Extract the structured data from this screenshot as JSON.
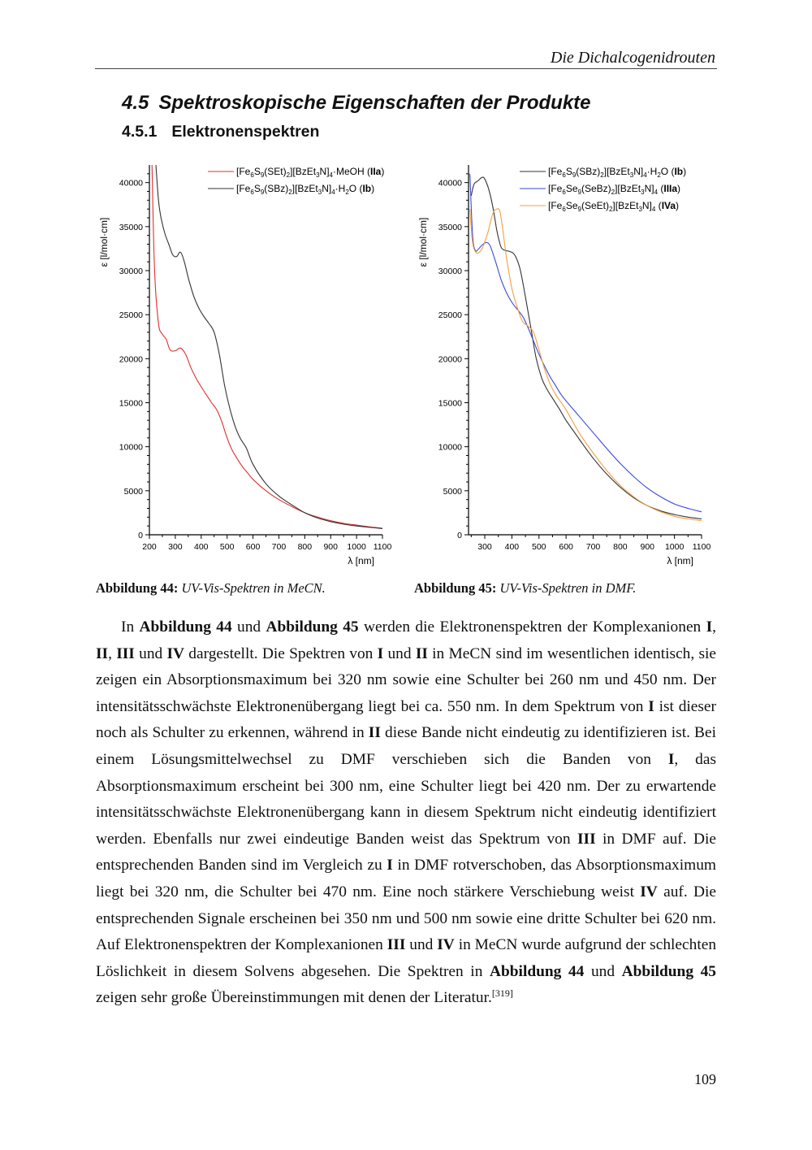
{
  "header": {
    "running_title": "Die Dichalcogenidrouten"
  },
  "section": {
    "number": "4.5",
    "title": "Spektroskopische Eigenschaften der Produkte"
  },
  "subsection": {
    "number": "4.5.1",
    "title": "Elektronenspektren"
  },
  "captions": {
    "fig44_label": "Abbildung 44:",
    "fig44_text": "UV-Vis-Spektren in MeCN.",
    "fig45_label": "Abbildung 45:",
    "fig45_text": "UV-Vis-Spektren in DMF."
  },
  "chart_data": [
    {
      "type": "line",
      "xlabel": "λ [nm]",
      "ylabel": "ε [l/mol·cm]",
      "xlim": [
        200,
        1100
      ],
      "ylim": [
        0,
        42000
      ],
      "xticks": [
        200,
        300,
        400,
        500,
        600,
        700,
        800,
        900,
        1000,
        1100
      ],
      "yticks": [
        0,
        5000,
        10000,
        15000,
        20000,
        25000,
        30000,
        35000,
        40000
      ],
      "legend_position": "top-right",
      "series": [
        {
          "name": "[Fe6S9(SEt)2][BzEt3N]4·MeOH (IIa)",
          "color": "#e03030",
          "x": [
            210,
            220,
            235,
            250,
            265,
            280,
            300,
            320,
            340,
            360,
            380,
            400,
            420,
            440,
            460,
            480,
            500,
            520,
            540,
            560,
            580,
            600,
            650,
            700,
            750,
            800,
            850,
            900,
            950,
            1000,
            1050,
            1100
          ],
          "y": [
            42000,
            30000,
            24000,
            22800,
            22200,
            21000,
            20900,
            21200,
            20500,
            19000,
            17800,
            16800,
            15900,
            15000,
            14200,
            12800,
            11000,
            9600,
            8600,
            7700,
            7000,
            6300,
            5000,
            4000,
            3200,
            2500,
            2000,
            1600,
            1300,
            1100,
            900,
            750
          ]
        },
        {
          "name": "[Fe6S9(SBz)2][BzEt3N]4·H2O (Ib)",
          "color": "#333333",
          "x": [
            225,
            235,
            245,
            260,
            275,
            290,
            305,
            320,
            335,
            350,
            370,
            390,
            410,
            430,
            450,
            470,
            490,
            510,
            530,
            550,
            575,
            600,
            650,
            700,
            750,
            800,
            850,
            900,
            950,
            1000,
            1050,
            1100
          ],
          "y": [
            42000,
            38000,
            36000,
            34200,
            33000,
            31800,
            31600,
            32100,
            31000,
            29200,
            27200,
            25800,
            24800,
            24000,
            23000,
            20500,
            17000,
            14400,
            12400,
            11000,
            9800,
            8000,
            5800,
            4400,
            3400,
            2500,
            1900,
            1500,
            1200,
            1000,
            850,
            700
          ]
        }
      ]
    },
    {
      "type": "line",
      "xlabel": "λ [nm]",
      "ylabel": "ε [l/mol·cm]",
      "xlim": [
        240,
        1100
      ],
      "ylim": [
        0,
        42000
      ],
      "xticks": [
        300,
        400,
        500,
        600,
        700,
        800,
        900,
        1000,
        1100
      ],
      "yticks": [
        0,
        5000,
        10000,
        15000,
        20000,
        25000,
        30000,
        35000,
        40000
      ],
      "legend_position": "top-right",
      "series": [
        {
          "name": "[Fe6S9(SBz)2][BzEt3N]4·H2O (Ib)",
          "color": "#333333",
          "x": [
            250,
            260,
            275,
            290,
            300,
            315,
            330,
            345,
            360,
            375,
            390,
            410,
            430,
            450,
            470,
            490,
            510,
            530,
            550,
            575,
            600,
            650,
            700,
            750,
            800,
            850,
            900,
            950,
            1000,
            1050,
            1100
          ],
          "y": [
            38500,
            39800,
            40200,
            40600,
            40400,
            39200,
            37200,
            34500,
            32700,
            32300,
            32200,
            31800,
            30200,
            27000,
            23500,
            20000,
            17800,
            16500,
            15500,
            14300,
            13000,
            10800,
            8700,
            6900,
            5400,
            4200,
            3300,
            2700,
            2300,
            2000,
            1800
          ]
        },
        {
          "name": "[Fe6Se9(SeBz)2][BzEt3N]4 (IIIa)",
          "color": "#3a48d8",
          "x": [
            245,
            255,
            265,
            275,
            290,
            305,
            320,
            340,
            360,
            380,
            400,
            420,
            440,
            460,
            480,
            500,
            520,
            540,
            560,
            580,
            600,
            650,
            700,
            750,
            800,
            850,
            900,
            950,
            1000,
            1050,
            1100
          ],
          "y": [
            41000,
            34000,
            32300,
            32400,
            32900,
            33200,
            32800,
            31000,
            29000,
            27500,
            26400,
            25600,
            24800,
            23500,
            22000,
            20500,
            19200,
            18000,
            17000,
            16000,
            15200,
            13400,
            11600,
            9800,
            8100,
            6600,
            5300,
            4300,
            3500,
            3000,
            2600
          ]
        },
        {
          "name": "[Fe6Se9(SeEt)2][BzEt3N]4 (IVa)",
          "color": "#f0a040",
          "x": [
            245,
            255,
            270,
            290,
            310,
            330,
            345,
            355,
            365,
            380,
            400,
            420,
            440,
            460,
            480,
            500,
            520,
            540,
            560,
            580,
            600,
            650,
            700,
            750,
            800,
            850,
            900,
            950,
            1000,
            1050,
            1100
          ],
          "y": [
            37000,
            33200,
            32000,
            32500,
            34200,
            36500,
            37000,
            36800,
            35000,
            31500,
            28000,
            25800,
            24200,
            23700,
            23000,
            21000,
            18900,
            17200,
            16000,
            15100,
            14200,
            11500,
            9300,
            7300,
            5600,
            4300,
            3300,
            2600,
            2100,
            1800,
            1600
          ]
        }
      ]
    }
  ],
  "chart_legends": [
    [
      {
        "parts": [
          [
            "Fe",
            "n"
          ],
          [
            "6",
            "sub"
          ],
          [
            "S",
            "n"
          ],
          [
            "9",
            "sub"
          ],
          [
            "(SEt)",
            "n"
          ],
          [
            "2",
            "sub"
          ],
          [
            "][BzEt",
            "n"
          ],
          [
            "3",
            "sub"
          ],
          [
            "N]",
            "n"
          ],
          [
            "4",
            "sub"
          ],
          [
            "·MeOH (",
            "n"
          ],
          [
            "IIa",
            "b"
          ],
          [
            ")",
            "n"
          ]
        ]
      },
      {
        "parts": [
          [
            "Fe",
            "n"
          ],
          [
            "6",
            "sub"
          ],
          [
            "S",
            "n"
          ],
          [
            "9",
            "sub"
          ],
          [
            "(SBz)",
            "n"
          ],
          [
            "2",
            "sub"
          ],
          [
            "][BzEt",
            "n"
          ],
          [
            "3",
            "sub"
          ],
          [
            "N]",
            "n"
          ],
          [
            "4",
            "sub"
          ],
          [
            "·H",
            "n"
          ],
          [
            "2",
            "sub"
          ],
          [
            "O (",
            "n"
          ],
          [
            "Ib",
            "b"
          ],
          [
            ")",
            "n"
          ]
        ]
      }
    ],
    [
      {
        "parts": [
          [
            "Fe",
            "n"
          ],
          [
            "6",
            "sub"
          ],
          [
            "S",
            "n"
          ],
          [
            "9",
            "sub"
          ],
          [
            "(SBz)",
            "n"
          ],
          [
            "2",
            "sub"
          ],
          [
            "][BzEt",
            "n"
          ],
          [
            "3",
            "sub"
          ],
          [
            "N]",
            "n"
          ],
          [
            "4",
            "sub"
          ],
          [
            "·H",
            "n"
          ],
          [
            "2",
            "sub"
          ],
          [
            "O (",
            "n"
          ],
          [
            "Ib",
            "b"
          ],
          [
            ")",
            "n"
          ]
        ]
      },
      {
        "parts": [
          [
            "Fe",
            "n"
          ],
          [
            "6",
            "sub"
          ],
          [
            "Se",
            "n"
          ],
          [
            "9",
            "sub"
          ],
          [
            "(SeBz)",
            "n"
          ],
          [
            "2",
            "sub"
          ],
          [
            "][BzEt",
            "n"
          ],
          [
            "3",
            "sub"
          ],
          [
            "N]",
            "n"
          ],
          [
            "4",
            "sub"
          ],
          [
            " (",
            "n"
          ],
          [
            "IIIa",
            "b"
          ],
          [
            ")",
            "n"
          ]
        ]
      },
      {
        "parts": [
          [
            "Fe",
            "n"
          ],
          [
            "6",
            "sub"
          ],
          [
            "Se",
            "n"
          ],
          [
            "9",
            "sub"
          ],
          [
            "(SeEt)",
            "n"
          ],
          [
            "2",
            "sub"
          ],
          [
            "][BzEt",
            "n"
          ],
          [
            "3",
            "sub"
          ],
          [
            "N]",
            "n"
          ],
          [
            "4",
            "sub"
          ],
          [
            " (",
            "n"
          ],
          [
            "IVa",
            "b"
          ],
          [
            ")",
            "n"
          ]
        ]
      }
    ]
  ],
  "body": {
    "paragraph": [
      [
        "In ",
        "n"
      ],
      [
        "Abbildung 44",
        "b"
      ],
      [
        " und ",
        "n"
      ],
      [
        "Abbildung 45",
        "b"
      ],
      [
        " werden die Elektronenspektren der Komplexanionen ",
        "n"
      ],
      [
        "I",
        "b"
      ],
      [
        ", ",
        "n"
      ],
      [
        "II",
        "b"
      ],
      [
        ", ",
        "n"
      ],
      [
        "III",
        "b"
      ],
      [
        " und ",
        "n"
      ],
      [
        "IV",
        "b"
      ],
      [
        " dargestellt. Die Spektren von ",
        "n"
      ],
      [
        "I",
        "b"
      ],
      [
        " und ",
        "n"
      ],
      [
        "II",
        "b"
      ],
      [
        " in MeCN sind im wesentlichen identisch, sie zeigen ein Absorptionsmaximum bei 320 nm sowie eine Schulter bei 260 nm und 450 nm. Der intensitätsschwächste Elektronenübergang liegt bei ca. 550 nm. In dem Spektrum von ",
        "n"
      ],
      [
        "I",
        "b"
      ],
      [
        " ist dieser noch als Schulter zu erkennen, während in ",
        "n"
      ],
      [
        "II",
        "b"
      ],
      [
        " diese Bande nicht eindeutig zu identifizieren ist. Bei einem Lösungsmittelwechsel zu DMF verschieben sich die Banden von ",
        "n"
      ],
      [
        "I",
        "b"
      ],
      [
        ", das Absorptionsmaximum erscheint bei 300 nm, eine Schulter liegt bei 420 nm. Der zu erwartende intensitätsschwächste Elektronenübergang kann in diesem Spektrum nicht eindeutig identifiziert werden. Ebenfalls nur zwei eindeutige Banden weist das Spektrum von ",
        "n"
      ],
      [
        "III",
        "b"
      ],
      [
        " in DMF auf. Die entsprechenden Banden sind im Vergleich zu ",
        "n"
      ],
      [
        "I",
        "b"
      ],
      [
        " in DMF rotverschoben, das Absorptionsmaximum liegt bei 320 nm, die Schulter bei 470 nm. Eine noch stärkere Verschiebung weist ",
        "n"
      ],
      [
        "IV",
        "b"
      ],
      [
        " auf. Die entsprechenden Signale erscheinen bei 350 nm und 500 nm sowie eine dritte Schulter bei 620 nm. Auf Elektronenspektren der Komplex­anionen ",
        "n"
      ],
      [
        "III",
        "b"
      ],
      [
        " und ",
        "n"
      ],
      [
        "IV",
        "b"
      ],
      [
        " in MeCN wurde aufgrund der schlechten Löslichkeit in diesem Solvens abgesehen. Die Spektren in ",
        "n"
      ],
      [
        "Abbildung 44",
        "b"
      ],
      [
        " und ",
        "n"
      ],
      [
        "Abbildung 45",
        "b"
      ],
      [
        " zeigen sehr große Übereinstim­mungen mit denen der Literatur.",
        "n"
      ],
      [
        "[319]",
        "sup"
      ]
    ]
  },
  "page_number": "109"
}
